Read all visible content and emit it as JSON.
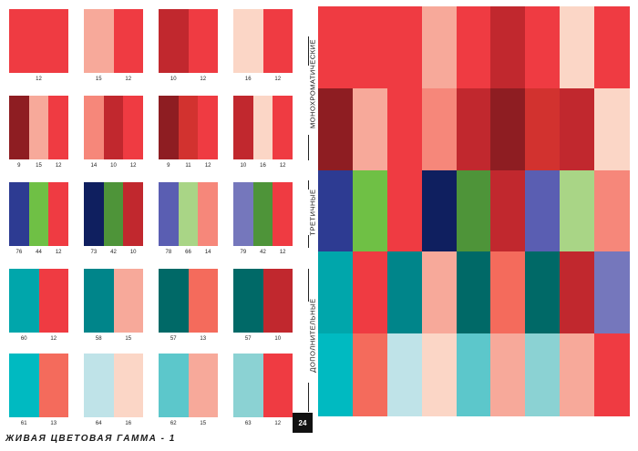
{
  "palette": {
    "1": "#ef3b42",
    "2": "#f7a99a",
    "3": "#c1282e",
    "4": "#fbd6c6",
    "5": "#8e1d22",
    "6": "#f6877a",
    "7": "#d2322f",
    "8": "#2d3b92",
    "9": "#6fc045",
    "10": "#0f1f5f",
    "11": "#4e9439",
    "12": "#5a5eb2",
    "13": "#a9d586",
    "14": "#7577bc",
    "15": "#00a6ab",
    "16": "#00858a",
    "17": "#006967",
    "18": "#f46b5c",
    "19": "#00bac1",
    "20": "#bfe3e8",
    "21": "#5cc7cb",
    "22": "#8bd2d3"
  },
  "left_swatches": [
    {
      "codes": [
        "12"
      ],
      "colors": [
        "1"
      ]
    },
    {
      "codes": [
        "15",
        "12"
      ],
      "colors": [
        "2",
        "1"
      ]
    },
    {
      "codes": [
        "10",
        "12"
      ],
      "colors": [
        "3",
        "1"
      ]
    },
    {
      "codes": [
        "16",
        "12"
      ],
      "colors": [
        "4",
        "1"
      ]
    },
    {
      "codes": [
        "9",
        "15",
        "12"
      ],
      "colors": [
        "5",
        "2",
        "1"
      ]
    },
    {
      "codes": [
        "14",
        "10",
        "12"
      ],
      "colors": [
        "6",
        "3",
        "1"
      ]
    },
    {
      "codes": [
        "9",
        "11",
        "12"
      ],
      "colors": [
        "5",
        "7",
        "1"
      ]
    },
    {
      "codes": [
        "10",
        "16",
        "12"
      ],
      "colors": [
        "3",
        "4",
        "1"
      ]
    },
    {
      "codes": [
        "76",
        "44",
        "12"
      ],
      "colors": [
        "8",
        "9",
        "1"
      ]
    },
    {
      "codes": [
        "73",
        "42",
        "10"
      ],
      "colors": [
        "10",
        "11",
        "3"
      ]
    },
    {
      "codes": [
        "78",
        "66",
        "14"
      ],
      "colors": [
        "12",
        "13",
        "6"
      ]
    },
    {
      "codes": [
        "79",
        "42",
        "12"
      ],
      "colors": [
        "14",
        "11",
        "1"
      ]
    },
    {
      "codes": [
        "60",
        "12"
      ],
      "colors": [
        "15",
        "1"
      ]
    },
    {
      "codes": [
        "58",
        "15"
      ],
      "colors": [
        "16",
        "2"
      ]
    },
    {
      "codes": [
        "57",
        "13"
      ],
      "colors": [
        "17",
        "18"
      ]
    },
    {
      "codes": [
        "57",
        "10"
      ],
      "colors": [
        "17",
        "3"
      ]
    },
    {
      "codes": [
        "61",
        "13"
      ],
      "colors": [
        "19",
        "18"
      ]
    },
    {
      "codes": [
        "64",
        "16"
      ],
      "colors": [
        "20",
        "4"
      ]
    },
    {
      "codes": [
        "62",
        "15"
      ],
      "colors": [
        "21",
        "2"
      ]
    },
    {
      "codes": [
        "63",
        "12"
      ],
      "colors": [
        "22",
        "1"
      ]
    }
  ],
  "section_labels": {
    "monochromatic": "МОНОХРОМАТИЧЕСКИЕ",
    "tertiary": "ТРЕТИЧНЫЕ",
    "complementary": "ДОПОЛНИТЕЛЬНЫЕ"
  },
  "footer": {
    "title": "ЖИВАЯ ЦВЕТОВАЯ ГАММА - 1",
    "page_number": "24"
  },
  "right_grid": {
    "rows": [
      [
        "1",
        "1",
        "1",
        "2",
        "1",
        "3",
        "1",
        "4",
        "1"
      ],
      [
        "5",
        "2",
        "1",
        "6",
        "3",
        "5",
        "7",
        "3",
        "4"
      ],
      [
        "8",
        "9",
        "1",
        "10",
        "11",
        "3",
        "12",
        "13",
        "6"
      ],
      [
        "15",
        "1",
        "16",
        "2",
        "17",
        "18",
        "17",
        "3",
        "14"
      ],
      [
        "19",
        "18",
        "20",
        "4",
        "21",
        "2",
        "22",
        "2",
        "1"
      ]
    ]
  }
}
